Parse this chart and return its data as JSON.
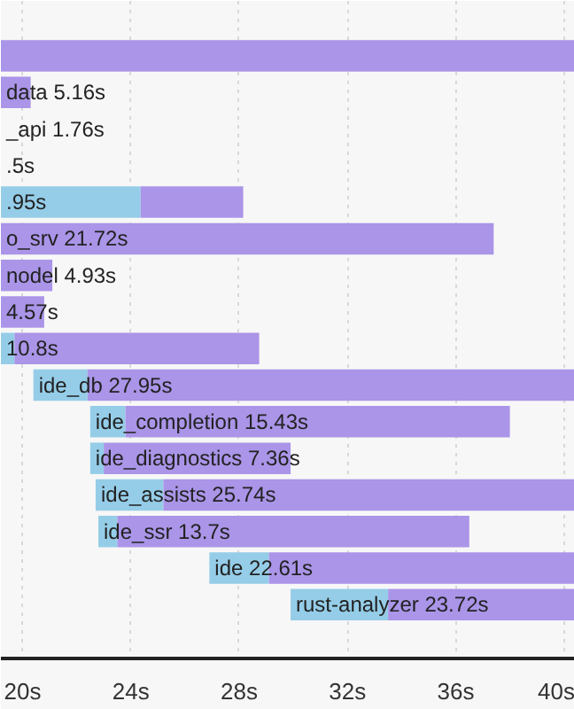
{
  "chart_data": {
    "type": "bar",
    "orientation": "horizontal",
    "categories": [
      null,
      "data 5.16s",
      "_api 1.76s",
      ".5s",
      ".95s",
      "o_srv 21.72s",
      "nodel 4.93s",
      "4.57s",
      "10.8s",
      "ide_db 27.95s",
      "ide_completion 15.43s",
      "ide_diagnostics 7.36s",
      "ide_assists 25.74s",
      "ide_ssr 13.7s",
      "ide 22.61s",
      "rust-analyzer 23.72s"
    ],
    "series": [
      {
        "color": "#95cde8",
        "base": [
          null,
          null,
          null,
          null,
          19.2,
          null,
          null,
          null,
          19.2,
          20.4,
          22.5,
          22.5,
          22.7,
          22.8,
          26.9,
          29.9
        ],
        "values": [
          null,
          null,
          null,
          null,
          5.16,
          null,
          null,
          null,
          0.5,
          2.0,
          1.3,
          0.5,
          2.5,
          0.7,
          2.2,
          3.6
        ]
      },
      {
        "color": "#aa95e8",
        "base": [
          19.2,
          19.2,
          null,
          null,
          24.36,
          19.2,
          19.2,
          19.2,
          19.7,
          22.4,
          23.8,
          23.0,
          25.2,
          23.5,
          29.1,
          33.5
        ],
        "values": [
          21.2,
          1.1,
          null,
          null,
          3.79,
          18.2,
          1.9,
          1.6,
          9.04,
          18.0,
          14.2,
          6.9,
          15.2,
          13.0,
          11.3,
          6.9
        ]
      }
    ],
    "xlim": [
      19.2,
      40.4
    ],
    "xticks": [
      {
        "value": 20,
        "label": "20s"
      },
      {
        "value": 24,
        "label": "24s"
      },
      {
        "value": 28,
        "label": "28s"
      },
      {
        "value": 32,
        "label": "32s"
      },
      {
        "value": 36,
        "label": "36s"
      },
      {
        "value": 40,
        "label": "40s"
      }
    ],
    "grid": "x"
  }
}
